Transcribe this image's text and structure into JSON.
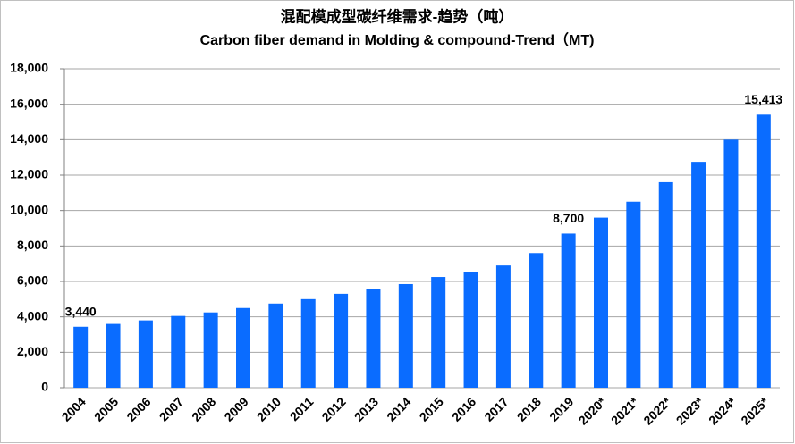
{
  "chart_data": {
    "type": "bar",
    "title": "混配模成型碳纤维需求-趋势（吨）",
    "subtitle": "Carbon fiber demand in Molding & compound-Trend（MT)",
    "categories": [
      "2004",
      "2005",
      "2006",
      "2007",
      "2008",
      "2009",
      "2010",
      "2011",
      "2012",
      "2013",
      "2014",
      "2015",
      "2016",
      "2017",
      "2018",
      "2019",
      "2020*",
      "2021*",
      "2022*",
      "2023*",
      "2024*",
      "2025*"
    ],
    "values": [
      3440,
      3600,
      3800,
      4050,
      4250,
      4500,
      4750,
      5000,
      5300,
      5550,
      5850,
      6250,
      6550,
      6900,
      7600,
      8700,
      9600,
      10500,
      11600,
      12750,
      14000,
      15413
    ],
    "value_labels": [
      "3,440",
      null,
      null,
      null,
      null,
      null,
      null,
      null,
      null,
      null,
      null,
      null,
      null,
      null,
      null,
      "8,700",
      null,
      null,
      null,
      null,
      null,
      "15,413"
    ],
    "color": "#0a6cff",
    "ylim": [
      0,
      18000
    ],
    "yticks": [
      0,
      {
        "value": 2000,
        "label": "2,000"
      },
      {
        "value": 4000,
        "label": "4,000"
      },
      {
        "value": 6000,
        "label": "6,000"
      },
      {
        "value": 8000,
        "label": "8,000"
      },
      {
        "value": 10000,
        "label": "10,000"
      },
      {
        "value": 12000,
        "label": "12,000"
      },
      {
        "value": 14000,
        "label": "14,000"
      },
      {
        "value": 16000,
        "label": "16,000"
      },
      {
        "value": 18000,
        "label": "18,000"
      }
    ],
    "grid": true
  }
}
